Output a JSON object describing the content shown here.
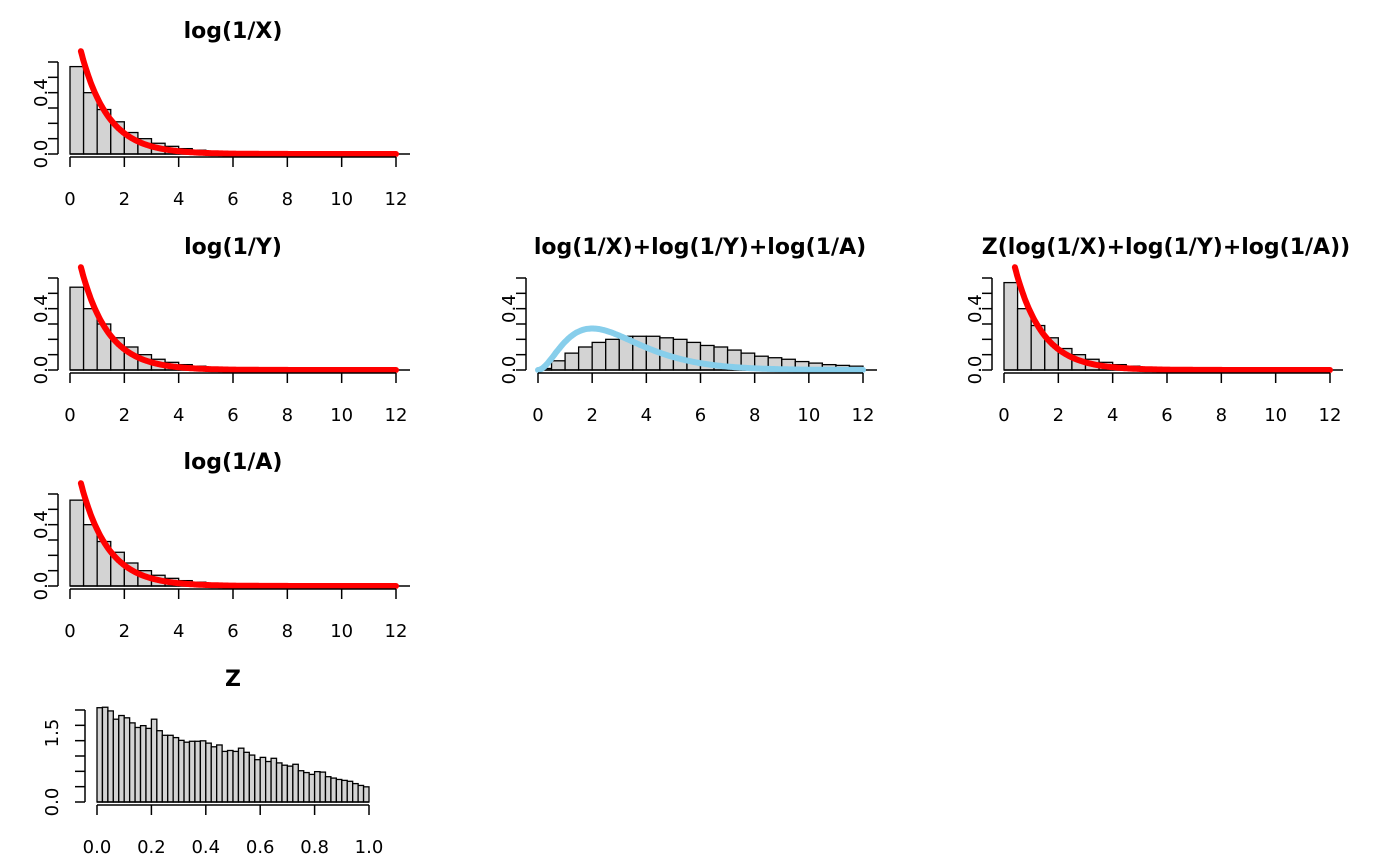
{
  "chart_data": [
    {
      "type": "bar",
      "title": "log(1/X)",
      "xlim": [
        0,
        12
      ],
      "ylim": [
        0,
        0.6
      ],
      "x_ticks": [
        "0",
        "2",
        "4",
        "6",
        "8",
        "10",
        "12"
      ],
      "y_ticks": [
        "0.0",
        "0.4"
      ],
      "bin_width": 0.5,
      "bars": [
        0.57,
        0.4,
        0.29,
        0.21,
        0.14,
        0.1,
        0.07,
        0.05,
        0.035,
        0.025,
        0.018,
        0.012,
        0.008,
        0.006,
        0.004,
        0.003,
        0.002,
        0.001
      ],
      "curve": {
        "kind": "exponential",
        "rate": 1,
        "color": "#ff0000"
      }
    },
    {
      "type": "bar",
      "title": "log(1/Y)",
      "xlim": [
        0,
        12
      ],
      "ylim": [
        0,
        0.6
      ],
      "x_ticks": [
        "0",
        "2",
        "4",
        "6",
        "8",
        "10",
        "12"
      ],
      "y_ticks": [
        "0.0",
        "0.4"
      ],
      "bin_width": 0.5,
      "bars": [
        0.54,
        0.4,
        0.3,
        0.21,
        0.15,
        0.1,
        0.07,
        0.05,
        0.035,
        0.025,
        0.018,
        0.012,
        0.008,
        0.006,
        0.004,
        0.003,
        0.002,
        0.001
      ],
      "curve": {
        "kind": "exponential",
        "rate": 1,
        "color": "#ff0000"
      }
    },
    {
      "type": "bar",
      "title": "log(1/A)",
      "xlim": [
        0,
        12
      ],
      "ylim": [
        0,
        0.6
      ],
      "x_ticks": [
        "0",
        "2",
        "4",
        "6",
        "8",
        "10",
        "12"
      ],
      "y_ticks": [
        "0.0",
        "0.4"
      ],
      "bin_width": 0.5,
      "bars": [
        0.56,
        0.4,
        0.29,
        0.22,
        0.15,
        0.1,
        0.07,
        0.05,
        0.035,
        0.025,
        0.018,
        0.012,
        0.008,
        0.006,
        0.004,
        0.003,
        0.002,
        0.001
      ],
      "curve": {
        "kind": "exponential",
        "rate": 1,
        "color": "#ff0000"
      }
    },
    {
      "type": "bar",
      "title": "log(1/X)+log(1/Y)+log(1/A)",
      "xlim": [
        0,
        12
      ],
      "ylim": [
        0,
        0.6
      ],
      "x_ticks": [
        "0",
        "2",
        "4",
        "6",
        "8",
        "10",
        "12"
      ],
      "y_ticks": [
        "0.0",
        "0.4"
      ],
      "bin_width": 0.5,
      "bars": [
        0.01,
        0.06,
        0.11,
        0.15,
        0.18,
        0.2,
        0.22,
        0.22,
        0.22,
        0.21,
        0.2,
        0.18,
        0.16,
        0.15,
        0.13,
        0.11,
        0.09,
        0.08,
        0.07,
        0.055,
        0.045,
        0.035,
        0.03,
        0.025,
        0.02,
        0.015,
        0.012,
        0.01,
        0.008,
        0.006
      ],
      "curve": {
        "kind": "gamma3",
        "color": "#87ceeb"
      }
    },
    {
      "type": "bar",
      "title": "Z(log(1/X)+log(1/Y)+log(1/A))",
      "xlim": [
        0,
        12
      ],
      "ylim": [
        0,
        0.6
      ],
      "x_ticks": [
        "0",
        "2",
        "4",
        "6",
        "8",
        "10",
        "12"
      ],
      "y_ticks": [
        "0.0",
        "0.4"
      ],
      "bin_width": 0.5,
      "bars": [
        0.57,
        0.4,
        0.29,
        0.21,
        0.14,
        0.1,
        0.07,
        0.05,
        0.035,
        0.025,
        0.018,
        0.012,
        0.008,
        0.006,
        0.004,
        0.003,
        0.002,
        0.001
      ],
      "curve": {
        "kind": "exponential",
        "rate": 1,
        "color": "#ff0000"
      }
    },
    {
      "type": "bar",
      "title": "Z",
      "xlim": [
        0,
        1
      ],
      "ylim": [
        0,
        2
      ],
      "x_ticks": [
        "0.0",
        "0.2",
        "0.4",
        "0.6",
        "0.8",
        "1.0"
      ],
      "y_ticks": [
        "0.0",
        "1.5"
      ],
      "bin_width": 0.02,
      "bars": [
        2.05,
        2.06,
        1.98,
        1.8,
        1.88,
        1.83,
        1.72,
        1.62,
        1.66,
        1.6,
        1.8,
        1.55,
        1.45,
        1.45,
        1.4,
        1.34,
        1.3,
        1.32,
        1.32,
        1.33,
        1.28,
        1.2,
        1.24,
        1.1,
        1.12,
        1.1,
        1.17,
        1.08,
        1.02,
        0.92,
        0.97,
        0.88,
        0.95,
        0.85,
        0.8,
        0.78,
        0.82,
        0.68,
        0.64,
        0.6,
        0.66,
        0.65,
        0.55,
        0.52,
        0.49,
        0.47,
        0.45,
        0.4,
        0.36,
        0.33,
        0.3,
        0.28,
        0.22,
        0.17,
        0.14,
        0.1,
        0.07,
        0.05,
        0.03,
        0.02
      ]
    }
  ]
}
